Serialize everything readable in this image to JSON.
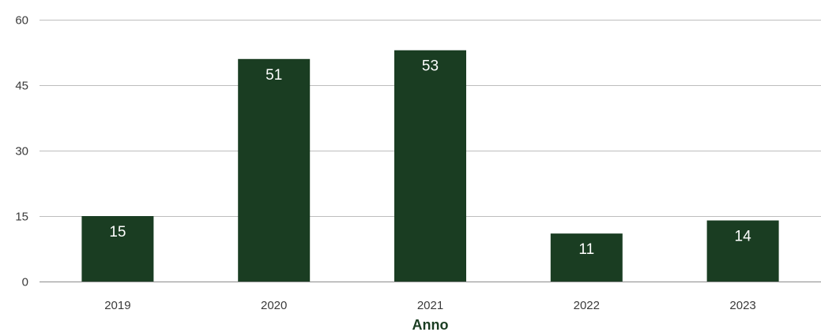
{
  "chart_data": {
    "type": "bar",
    "categories": [
      "2019",
      "2020",
      "2021",
      "2022",
      "2023"
    ],
    "values": [
      15,
      51,
      53,
      11,
      14
    ],
    "data_labels": [
      "15",
      "51",
      "53",
      "11",
      "14"
    ],
    "title": "",
    "xlabel": "Anno",
    "ylabel": "",
    "ylim": [
      0,
      60
    ],
    "yticks": [
      0,
      15,
      30,
      45,
      60
    ],
    "grid": true,
    "legend": "none",
    "bar_color": "#1a3d22"
  }
}
